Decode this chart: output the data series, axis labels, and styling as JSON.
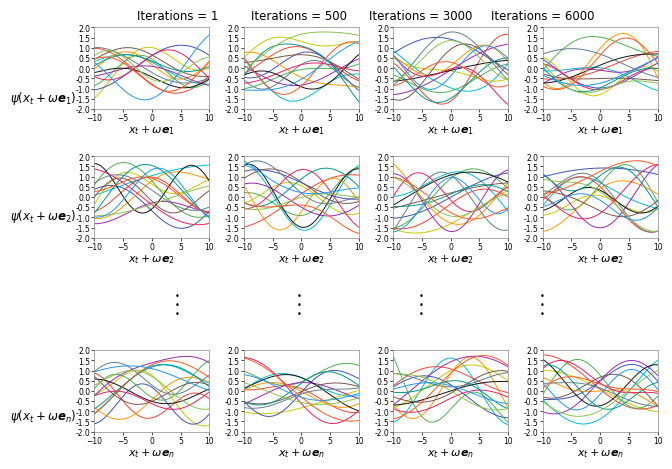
{
  "col_titles": [
    "Iterations = 1",
    "Iterations = 500",
    "Iterations = 3000",
    "Iterations = 6000"
  ],
  "row_ylabels_latex": [
    "$\\psi(x_t+\\omega\\boldsymbol{e}_1)$",
    "$\\psi(x_t+\\omega\\boldsymbol{e}_2)$",
    "$\\psi(x_t+\\omega\\boldsymbol{e}_n)$"
  ],
  "xlabels_latex": [
    "$x_t+\\omega\\boldsymbol{e}_1$",
    "$x_t+\\omega\\boldsymbol{e}_2$",
    "$x_t+\\omega\\boldsymbol{e}_n$"
  ],
  "xlim": [
    -10,
    10
  ],
  "ylim": [
    -2.0,
    2.0
  ],
  "yticks": [
    -2.0,
    -1.5,
    -1.0,
    -0.5,
    0.0,
    0.5,
    1.0,
    1.5,
    2.0
  ],
  "xticks": [
    -10,
    -5,
    0,
    5,
    10
  ],
  "n_lines": 15,
  "seed_base": 42,
  "bg_color": "#ffffff",
  "line_colors": [
    "#00bcd4",
    "#c8c800",
    "#f44336",
    "#3f51b5",
    "#4caf50",
    "#ff9800",
    "#9c27b0",
    "#111111",
    "#795548",
    "#607d8b",
    "#e91e63",
    "#009688",
    "#8bc34a",
    "#ff5722",
    "#2196f3"
  ],
  "linewidth": 0.7,
  "title_fontsize": 8.5,
  "label_fontsize": 8,
  "tick_fontsize": 5.5,
  "ylabel_fontsize": 8.5
}
